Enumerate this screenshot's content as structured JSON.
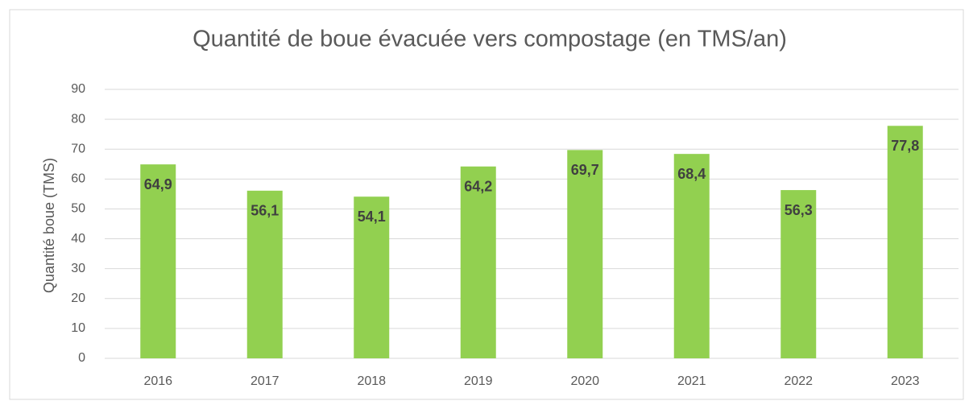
{
  "chart_data": {
    "type": "bar",
    "title": "Quantité de boue évacuée vers compostage (en TMS/an)",
    "y_label": "Quantité boue (TMS)",
    "categories": [
      "2016",
      "2017",
      "2018",
      "2019",
      "2020",
      "2021",
      "2022",
      "2023"
    ],
    "values": [
      64.9,
      56.1,
      54.1,
      64.2,
      69.7,
      68.4,
      56.3,
      77.8
    ],
    "value_labels": [
      "64,9",
      "56,1",
      "54,1",
      "64,2",
      "69,7",
      "68,4",
      "56,3",
      "77,8"
    ],
    "color": "#92d050",
    "ylim": [
      0,
      90
    ],
    "yticks": [
      0,
      10,
      20,
      30,
      40,
      50,
      60,
      70,
      80,
      90
    ],
    "grid": true
  }
}
